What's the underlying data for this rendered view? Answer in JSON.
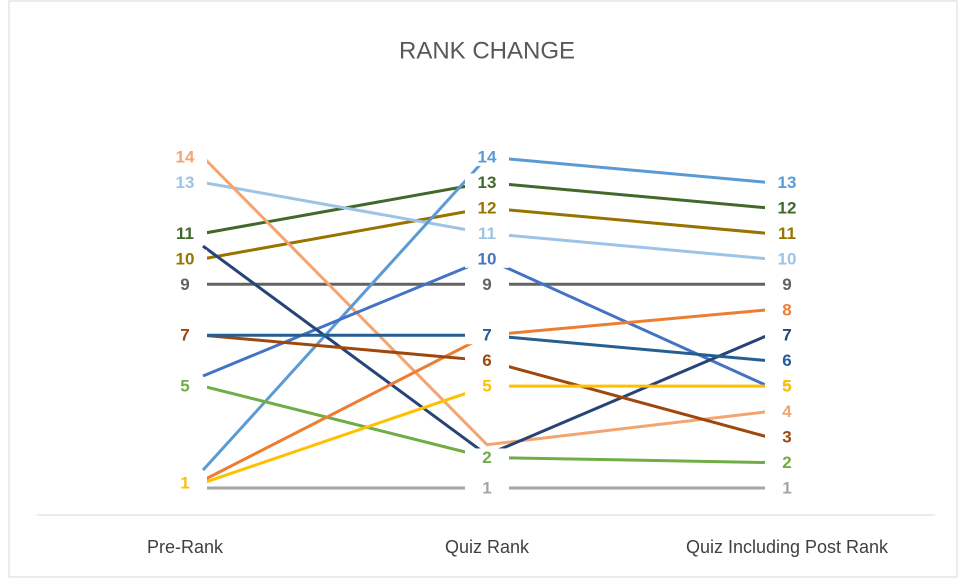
{
  "chart_data": {
    "type": "line",
    "title": "RANK CHANGE",
    "categories": [
      "Pre-Rank",
      "Quiz Rank",
      "Quiz Including Post Rank"
    ],
    "ylim": [
      1,
      14
    ],
    "series": [
      {
        "color": "#a5a5a5",
        "values": [
          1,
          1,
          1
        ],
        "value_labels": [
          null,
          "1",
          "1"
        ]
      },
      {
        "color": "#636363",
        "values": [
          9,
          9,
          9
        ],
        "value_labels": [
          "9",
          "9",
          "9"
        ]
      },
      {
        "color": "#43682b",
        "values": [
          11,
          13,
          12
        ],
        "value_labels": [
          "11",
          "13",
          "12"
        ]
      },
      {
        "color": "#997300",
        "values": [
          10,
          12,
          11
        ],
        "value_labels": [
          "10",
          "12",
          "11"
        ]
      },
      {
        "color": "#9dc3e6",
        "values": [
          13,
          11,
          10
        ],
        "value_labels": [
          "13",
          "11",
          "10"
        ]
      },
      {
        "color": "#f4a46f",
        "values": [
          14,
          2.7,
          4
        ],
        "value_labels": [
          "14",
          null,
          "4"
        ]
      },
      {
        "color": "#5b9bd5",
        "values": [
          1.7,
          14,
          13
        ],
        "value_labels": [
          null,
          "14",
          "13"
        ]
      },
      {
        "color": "#4472c4",
        "values": [
          5.4,
          10,
          5
        ],
        "value_labels": [
          null,
          "10",
          "5"
        ]
      },
      {
        "color": "#70ad47",
        "values": [
          5,
          2.2,
          2
        ],
        "value_labels": [
          "5",
          "2",
          "2"
        ]
      },
      {
        "color": "#264478",
        "values": [
          10.5,
          2.3,
          7
        ],
        "value_labels": [
          null,
          null,
          "7"
        ]
      },
      {
        "color": "#ed7d31",
        "values": [
          1.3,
          7,
          8
        ],
        "value_labels": [
          null,
          null,
          "8"
        ]
      },
      {
        "color": "#9e480e",
        "values": [
          7,
          6,
          3
        ],
        "value_labels": [
          "7",
          "6",
          "3"
        ]
      },
      {
        "color": "#255e91",
        "values": [
          7,
          7,
          6
        ],
        "value_labels": [
          null,
          "7",
          "6"
        ]
      },
      {
        "color": "#ffc000",
        "values": [
          1.2,
          5,
          5
        ],
        "value_labels": [
          "1",
          "5",
          "5"
        ]
      }
    ]
  }
}
